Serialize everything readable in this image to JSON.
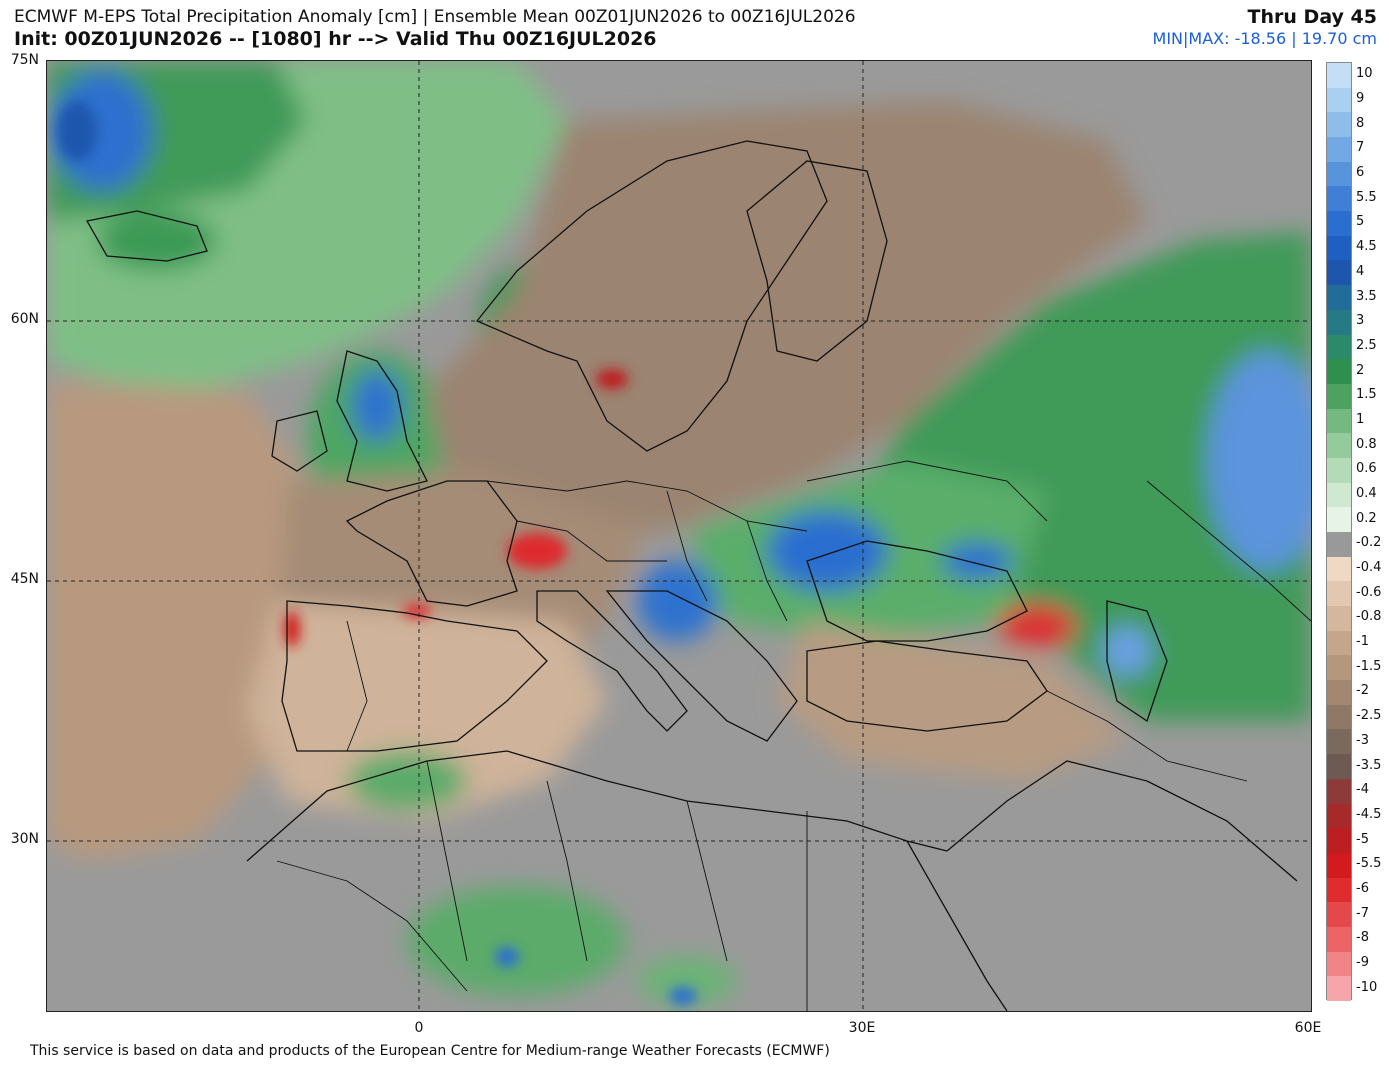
{
  "header": {
    "title_line1": "ECMWF M-EPS Total Precipitation Anomaly [cm] | Ensemble Mean 00Z01JUN2026 to 00Z16JUL2026",
    "title_line2": "Init: 00Z01JUN2026 -- [1080] hr --> Valid Thu 00Z16JUL2026",
    "day_label": "Thru Day 45",
    "minmax_label": "MIN|MAX: -18.56 | 19.70 cm"
  },
  "axes": {
    "lat_labels": [
      "75N",
      "60N",
      "45N",
      "30N"
    ],
    "lon_labels": [
      "0",
      "30E",
      "60E"
    ]
  },
  "footer": {
    "text": "This service is based on data and products of the European Centre for Medium-range Weather Forecasts (ECMWF)"
  },
  "legend": {
    "levels": [
      {
        "label": "10",
        "color": "#c4def5"
      },
      {
        "label": "9",
        "color": "#a9cff1"
      },
      {
        "label": "8",
        "color": "#8ebde9"
      },
      {
        "label": "7",
        "color": "#72a9e4"
      },
      {
        "label": "6",
        "color": "#5794dc"
      },
      {
        "label": "5.5",
        "color": "#3f80d6"
      },
      {
        "label": "5",
        "color": "#2a6ed0"
      },
      {
        "label": "4.5",
        "color": "#1f5fc1"
      },
      {
        "label": "4",
        "color": "#1e56ad"
      },
      {
        "label": "3.5",
        "color": "#226c9a"
      },
      {
        "label": "3",
        "color": "#267a86"
      },
      {
        "label": "2.5",
        "color": "#2a8a6a"
      },
      {
        "label": "2",
        "color": "#2f8f4e"
      },
      {
        "label": "1.5",
        "color": "#4ca25e"
      },
      {
        "label": "1",
        "color": "#74b980"
      },
      {
        "label": "0.8",
        "color": "#95cb9c"
      },
      {
        "label": "0.6",
        "color": "#b3dbb8"
      },
      {
        "label": "0.4",
        "color": "#cfe9d1"
      },
      {
        "label": "0.2",
        "color": "#e7f3e6"
      },
      {
        "label": "-0.2",
        "color": "#999999"
      },
      {
        "label": "-0.4",
        "color": "#efd9c4"
      },
      {
        "label": "-0.6",
        "color": "#e2c8b0"
      },
      {
        "label": "-0.8",
        "color": "#d4b79d"
      },
      {
        "label": "-1",
        "color": "#c5a68b"
      },
      {
        "label": "-1.5",
        "color": "#b5977c"
      },
      {
        "label": "-2",
        "color": "#a38770"
      },
      {
        "label": "-2.5",
        "color": "#8f7866"
      },
      {
        "label": "-3",
        "color": "#7a6a5e"
      },
      {
        "label": "-3.5",
        "color": "#6d5a52"
      },
      {
        "label": "-4",
        "color": "#8c3a3a"
      },
      {
        "label": "-4.5",
        "color": "#a62a2a"
      },
      {
        "label": "-5",
        "color": "#bd1e22"
      },
      {
        "label": "-5.5",
        "color": "#d21a1f"
      },
      {
        "label": "-6",
        "color": "#de2c2f"
      },
      {
        "label": "-7",
        "color": "#e5484a"
      },
      {
        "label": "-8",
        "color": "#ec6466"
      },
      {
        "label": "-9",
        "color": "#f18487"
      },
      {
        "label": "-10",
        "color": "#f6a6aa"
      }
    ]
  }
}
